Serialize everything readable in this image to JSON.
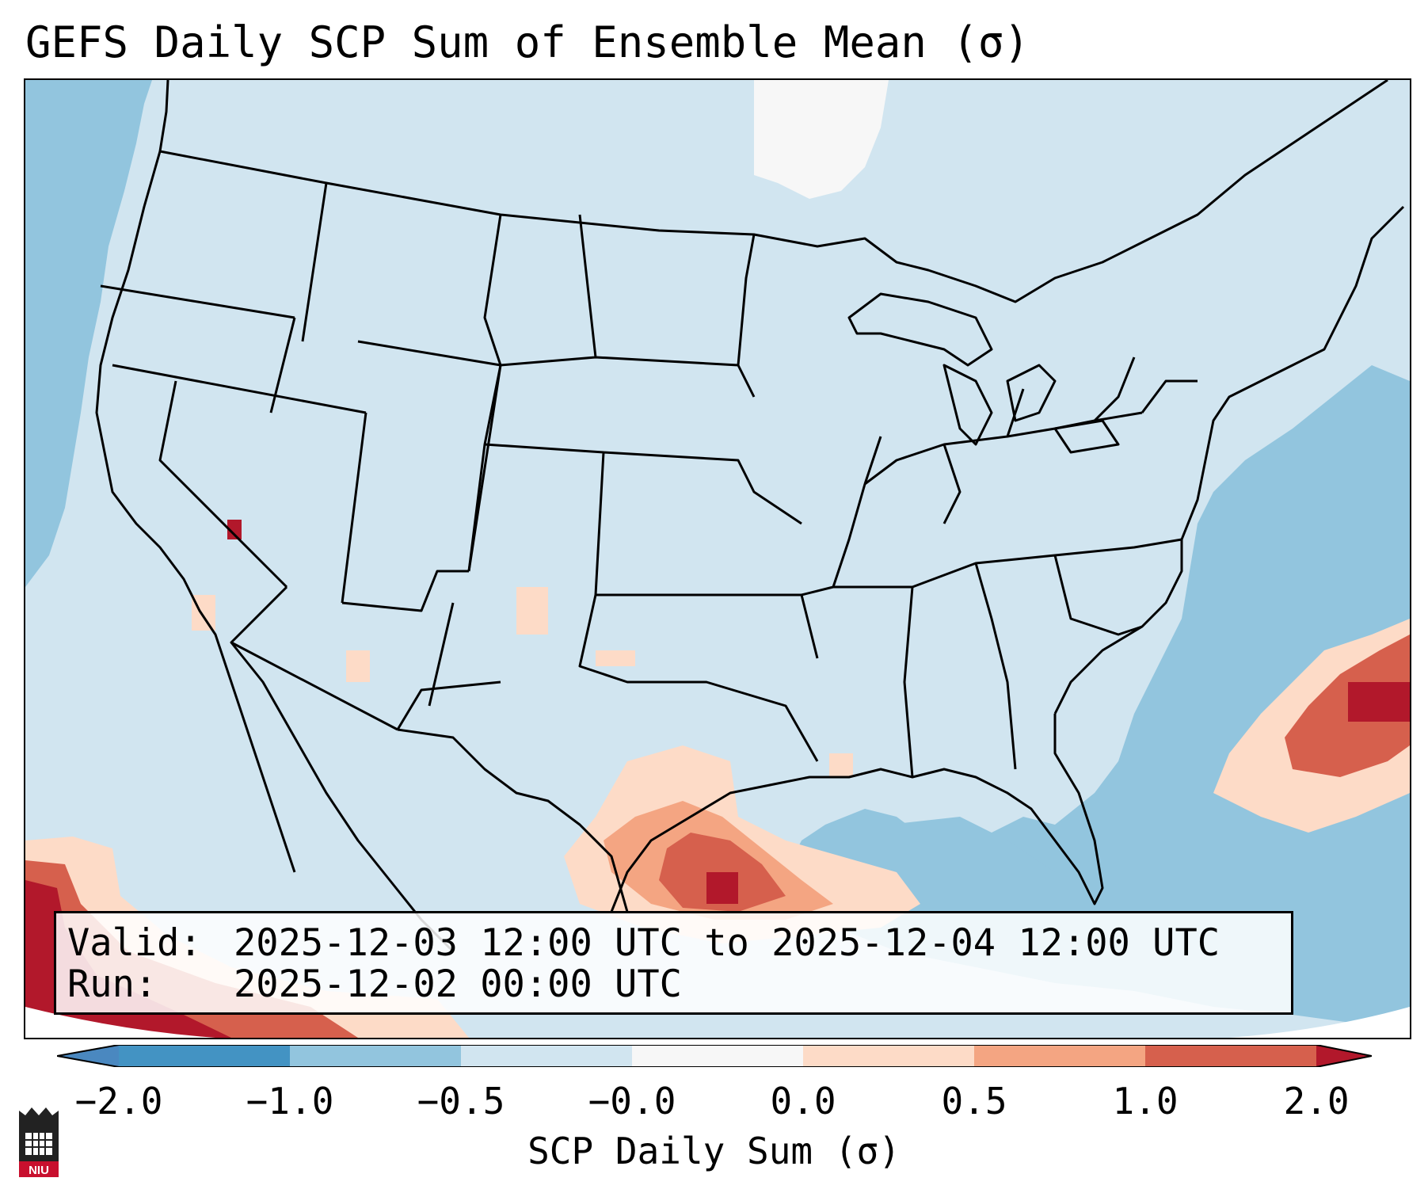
{
  "title": "GEFS Daily SCP Sum of Ensemble Mean (σ)",
  "info": {
    "valid_label": "Valid:",
    "valid_value": "2025-12-03 12:00 UTC to 2025-12-04 12:00 UTC",
    "run_label": "Run:",
    "run_value": "2025-12-02 00:00 UTC"
  },
  "colorbar": {
    "label": "SCP Daily Sum (σ)",
    "ticks": [
      "−2.0",
      "−1.0",
      "−0.5",
      "−0.0",
      "0.0",
      "0.5",
      "1.0",
      "2.0"
    ],
    "colors": {
      "below_min": "#4a88c0",
      "bin_-2_-1": "#4393c3",
      "bin_-1_-0.5": "#92c5de",
      "bin_-0.5_0": "#d1e5f0",
      "bin_0_0": "#f7f7f7",
      "bin_0_0.5": "#fddbc7",
      "bin_0.5_1": "#f4a582",
      "bin_1_2": "#d6604d",
      "above_max": "#b2182b"
    }
  },
  "map": {
    "region": "Contiguous United States",
    "ocean_anomaly_color": "#92c5de",
    "land_anomaly_color": "#d1e5f0"
  },
  "logo": {
    "text": "NIU"
  }
}
